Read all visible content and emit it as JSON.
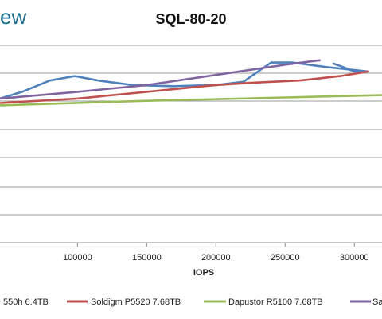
{
  "logo": {
    "text": "ew"
  },
  "chart_data": {
    "type": "line",
    "title": "SQL-80-20",
    "xlabel": "IOPS",
    "ylabel": "",
    "xlim": [
      44000,
      320000
    ],
    "ylim": [
      0,
      10
    ],
    "x_ticks": [
      100000,
      150000,
      200000,
      250000,
      300000
    ],
    "x_tick_labels": [
      "100000",
      "150000",
      "200000",
      "250000",
      "300000"
    ],
    "y_ticks": [
      0,
      1,
      2,
      3,
      4,
      5,
      6,
      7
    ],
    "grid": true,
    "legend_position": "bottom",
    "series": [
      {
        "name": "550h 6.4TB",
        "color": "#4f81bd",
        "segments": [
          [
            [
              44000,
              6.4
            ],
            [
              60000,
              6.7
            ],
            [
              80000,
              7.2
            ],
            [
              98000,
              7.4
            ],
            [
              115000,
              7.2
            ],
            [
              140000,
              7.0
            ],
            [
              170000,
              6.95
            ],
            [
              200000,
              7.0
            ],
            [
              220000,
              7.15
            ],
            [
              228000,
              7.5
            ],
            [
              240000,
              8.0
            ],
            [
              255000,
              8.0
            ],
            [
              280000,
              7.8
            ],
            [
              310000,
              7.6
            ]
          ],
          [
            [
              285000,
              7.95
            ],
            [
              292000,
              7.8
            ],
            [
              300000,
              7.6
            ],
            [
              310000,
              7.6
            ]
          ]
        ]
      },
      {
        "name": "Soldigm P5520 7.68TB",
        "color": "#c0504d",
        "segments": [
          [
            [
              44000,
              6.2
            ],
            [
              100000,
              6.4
            ],
            [
              150000,
              6.7
            ],
            [
              200000,
              7.0
            ],
            [
              225000,
              7.1
            ],
            [
              260000,
              7.2
            ],
            [
              290000,
              7.4
            ],
            [
              310000,
              7.6
            ]
          ]
        ]
      },
      {
        "name": "Dapustor R5100 7.68TB",
        "color": "#9bbb59",
        "segments": [
          [
            [
              44000,
              6.1
            ],
            [
              150000,
              6.3
            ],
            [
              250000,
              6.45
            ],
            [
              320000,
              6.55
            ]
          ]
        ]
      },
      {
        "name": "Sa",
        "color": "#8064a2",
        "segments": [
          [
            [
              44000,
              6.4
            ],
            [
              100000,
              6.7
            ],
            [
              150000,
              7.0
            ],
            [
              200000,
              7.45
            ],
            [
              250000,
              7.9
            ],
            [
              275000,
              8.1
            ]
          ]
        ]
      }
    ]
  }
}
